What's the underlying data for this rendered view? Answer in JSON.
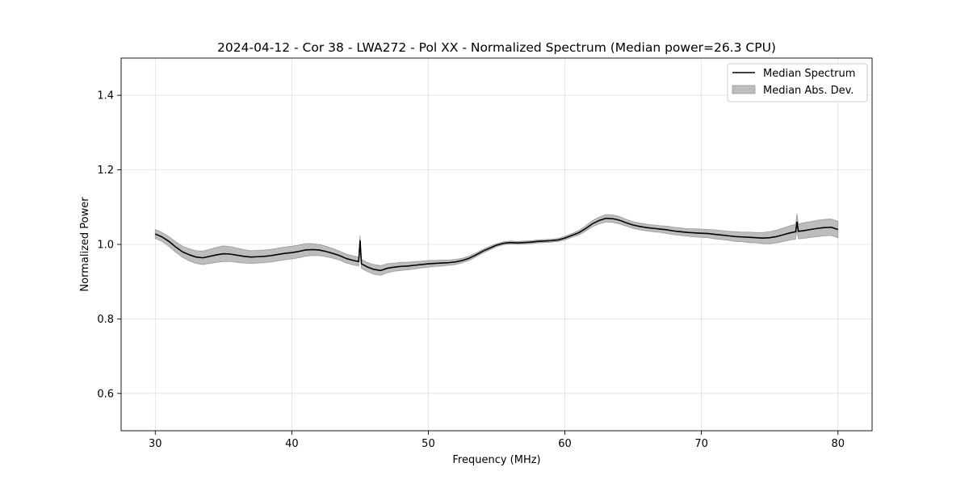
{
  "chart_data": {
    "type": "line",
    "title": "2024-04-12 - Cor 38 - LWA272 - Pol XX - Normalized Spectrum (Median power=26.3 CPU)",
    "xlabel": "Frequency (MHz)",
    "ylabel": "Normalized Power",
    "xlim": [
      27.5,
      82.5
    ],
    "ylim": [
      0.5,
      1.5
    ],
    "xticks": [
      30,
      40,
      50,
      60,
      70,
      80
    ],
    "yticks": [
      0.6,
      0.8,
      1.0,
      1.2,
      1.4
    ],
    "xtick_labels": [
      "30",
      "40",
      "50",
      "60",
      "70",
      "80"
    ],
    "ytick_labels": [
      "0.6",
      "0.8",
      "1.0",
      "1.2",
      "1.4"
    ],
    "grid": true,
    "legend_position": "upper right",
    "colors": {
      "line": "#000000",
      "band": "#bdbdbd",
      "band_edge": "#999999"
    },
    "series": [
      {
        "name": "Median Spectrum",
        "kind": "line",
        "x": [
          30.0,
          30.5,
          31.0,
          31.5,
          32.0,
          32.5,
          33.0,
          33.5,
          34.0,
          34.5,
          35.0,
          35.5,
          36.0,
          36.5,
          37.0,
          37.5,
          38.0,
          38.5,
          39.0,
          39.5,
          40.0,
          40.5,
          41.0,
          41.5,
          42.0,
          42.5,
          43.0,
          43.5,
          44.0,
          44.5,
          44.9,
          45.0,
          45.1,
          45.5,
          46.0,
          46.5,
          47.0,
          47.5,
          48.0,
          48.5,
          49.0,
          49.5,
          50.0,
          50.5,
          51.0,
          51.5,
          52.0,
          52.5,
          53.0,
          53.5,
          54.0,
          54.5,
          55.0,
          55.5,
          56.0,
          56.5,
          57.0,
          57.5,
          58.0,
          58.5,
          59.0,
          59.5,
          60.0,
          60.5,
          61.0,
          61.5,
          62.0,
          62.5,
          63.0,
          63.5,
          64.0,
          64.5,
          65.0,
          65.5,
          66.0,
          66.5,
          67.0,
          67.5,
          68.0,
          68.5,
          69.0,
          69.5,
          70.0,
          70.5,
          71.0,
          71.5,
          72.0,
          72.5,
          73.0,
          73.5,
          74.0,
          74.5,
          75.0,
          75.5,
          76.0,
          76.5,
          76.9,
          77.0,
          77.1,
          77.5,
          78.0,
          78.5,
          79.0,
          79.5,
          80.0
        ],
        "y": [
          1.028,
          1.02,
          1.008,
          0.993,
          0.98,
          0.972,
          0.966,
          0.964,
          0.968,
          0.972,
          0.975,
          0.974,
          0.971,
          0.968,
          0.966,
          0.967,
          0.968,
          0.97,
          0.973,
          0.976,
          0.978,
          0.981,
          0.985,
          0.986,
          0.985,
          0.981,
          0.976,
          0.97,
          0.962,
          0.957,
          0.954,
          1.01,
          0.948,
          0.94,
          0.933,
          0.93,
          0.936,
          0.939,
          0.941,
          0.942,
          0.944,
          0.946,
          0.948,
          0.949,
          0.95,
          0.951,
          0.953,
          0.957,
          0.963,
          0.972,
          0.982,
          0.99,
          0.998,
          1.003,
          1.005,
          1.004,
          1.005,
          1.006,
          1.008,
          1.009,
          1.01,
          1.012,
          1.017,
          1.024,
          1.031,
          1.042,
          1.055,
          1.064,
          1.07,
          1.069,
          1.065,
          1.058,
          1.052,
          1.048,
          1.045,
          1.043,
          1.041,
          1.039,
          1.036,
          1.034,
          1.032,
          1.031,
          1.03,
          1.029,
          1.027,
          1.025,
          1.023,
          1.021,
          1.02,
          1.019,
          1.018,
          1.017,
          1.018,
          1.021,
          1.026,
          1.031,
          1.034,
          1.06,
          1.035,
          1.037,
          1.04,
          1.043,
          1.045,
          1.046,
          1.04
        ]
      },
      {
        "name": "Median Abs. Dev.",
        "kind": "band",
        "x": [
          30.0,
          30.5,
          31.0,
          31.5,
          32.0,
          32.5,
          33.0,
          33.5,
          34.0,
          34.5,
          35.0,
          35.5,
          36.0,
          36.5,
          37.0,
          37.5,
          38.0,
          38.5,
          39.0,
          39.5,
          40.0,
          40.5,
          41.0,
          41.5,
          42.0,
          42.5,
          43.0,
          43.5,
          44.0,
          44.5,
          44.9,
          45.0,
          45.1,
          45.5,
          46.0,
          46.5,
          47.0,
          47.5,
          48.0,
          48.5,
          49.0,
          49.5,
          50.0,
          50.5,
          51.0,
          51.5,
          52.0,
          52.5,
          53.0,
          53.5,
          54.0,
          54.5,
          55.0,
          55.5,
          56.0,
          56.5,
          57.0,
          57.5,
          58.0,
          58.5,
          59.0,
          59.5,
          60.0,
          60.5,
          61.0,
          61.5,
          62.0,
          62.5,
          63.0,
          63.5,
          64.0,
          64.5,
          65.0,
          65.5,
          66.0,
          66.5,
          67.0,
          67.5,
          68.0,
          68.5,
          69.0,
          69.5,
          70.0,
          70.5,
          71.0,
          71.5,
          72.0,
          72.5,
          73.0,
          73.5,
          74.0,
          74.5,
          75.0,
          75.5,
          76.0,
          76.5,
          76.9,
          77.0,
          77.1,
          77.5,
          78.0,
          78.5,
          79.0,
          79.5,
          80.0
        ],
        "halfwidth": [
          0.012,
          0.012,
          0.013,
          0.014,
          0.015,
          0.016,
          0.017,
          0.018,
          0.019,
          0.02,
          0.021,
          0.02,
          0.019,
          0.018,
          0.017,
          0.017,
          0.017,
          0.017,
          0.017,
          0.017,
          0.017,
          0.017,
          0.017,
          0.016,
          0.015,
          0.014,
          0.013,
          0.012,
          0.012,
          0.012,
          0.012,
          0.014,
          0.012,
          0.012,
          0.013,
          0.013,
          0.012,
          0.011,
          0.011,
          0.01,
          0.01,
          0.009,
          0.009,
          0.008,
          0.008,
          0.007,
          0.007,
          0.006,
          0.006,
          0.005,
          0.005,
          0.005,
          0.004,
          0.004,
          0.004,
          0.004,
          0.004,
          0.004,
          0.004,
          0.004,
          0.004,
          0.004,
          0.005,
          0.005,
          0.006,
          0.007,
          0.008,
          0.009,
          0.01,
          0.01,
          0.01,
          0.009,
          0.009,
          0.009,
          0.009,
          0.009,
          0.009,
          0.01,
          0.01,
          0.01,
          0.01,
          0.011,
          0.011,
          0.011,
          0.012,
          0.012,
          0.012,
          0.013,
          0.013,
          0.014,
          0.014,
          0.015,
          0.016,
          0.017,
          0.018,
          0.019,
          0.02,
          0.022,
          0.02,
          0.021,
          0.021,
          0.022,
          0.022,
          0.022,
          0.022
        ]
      }
    ]
  }
}
